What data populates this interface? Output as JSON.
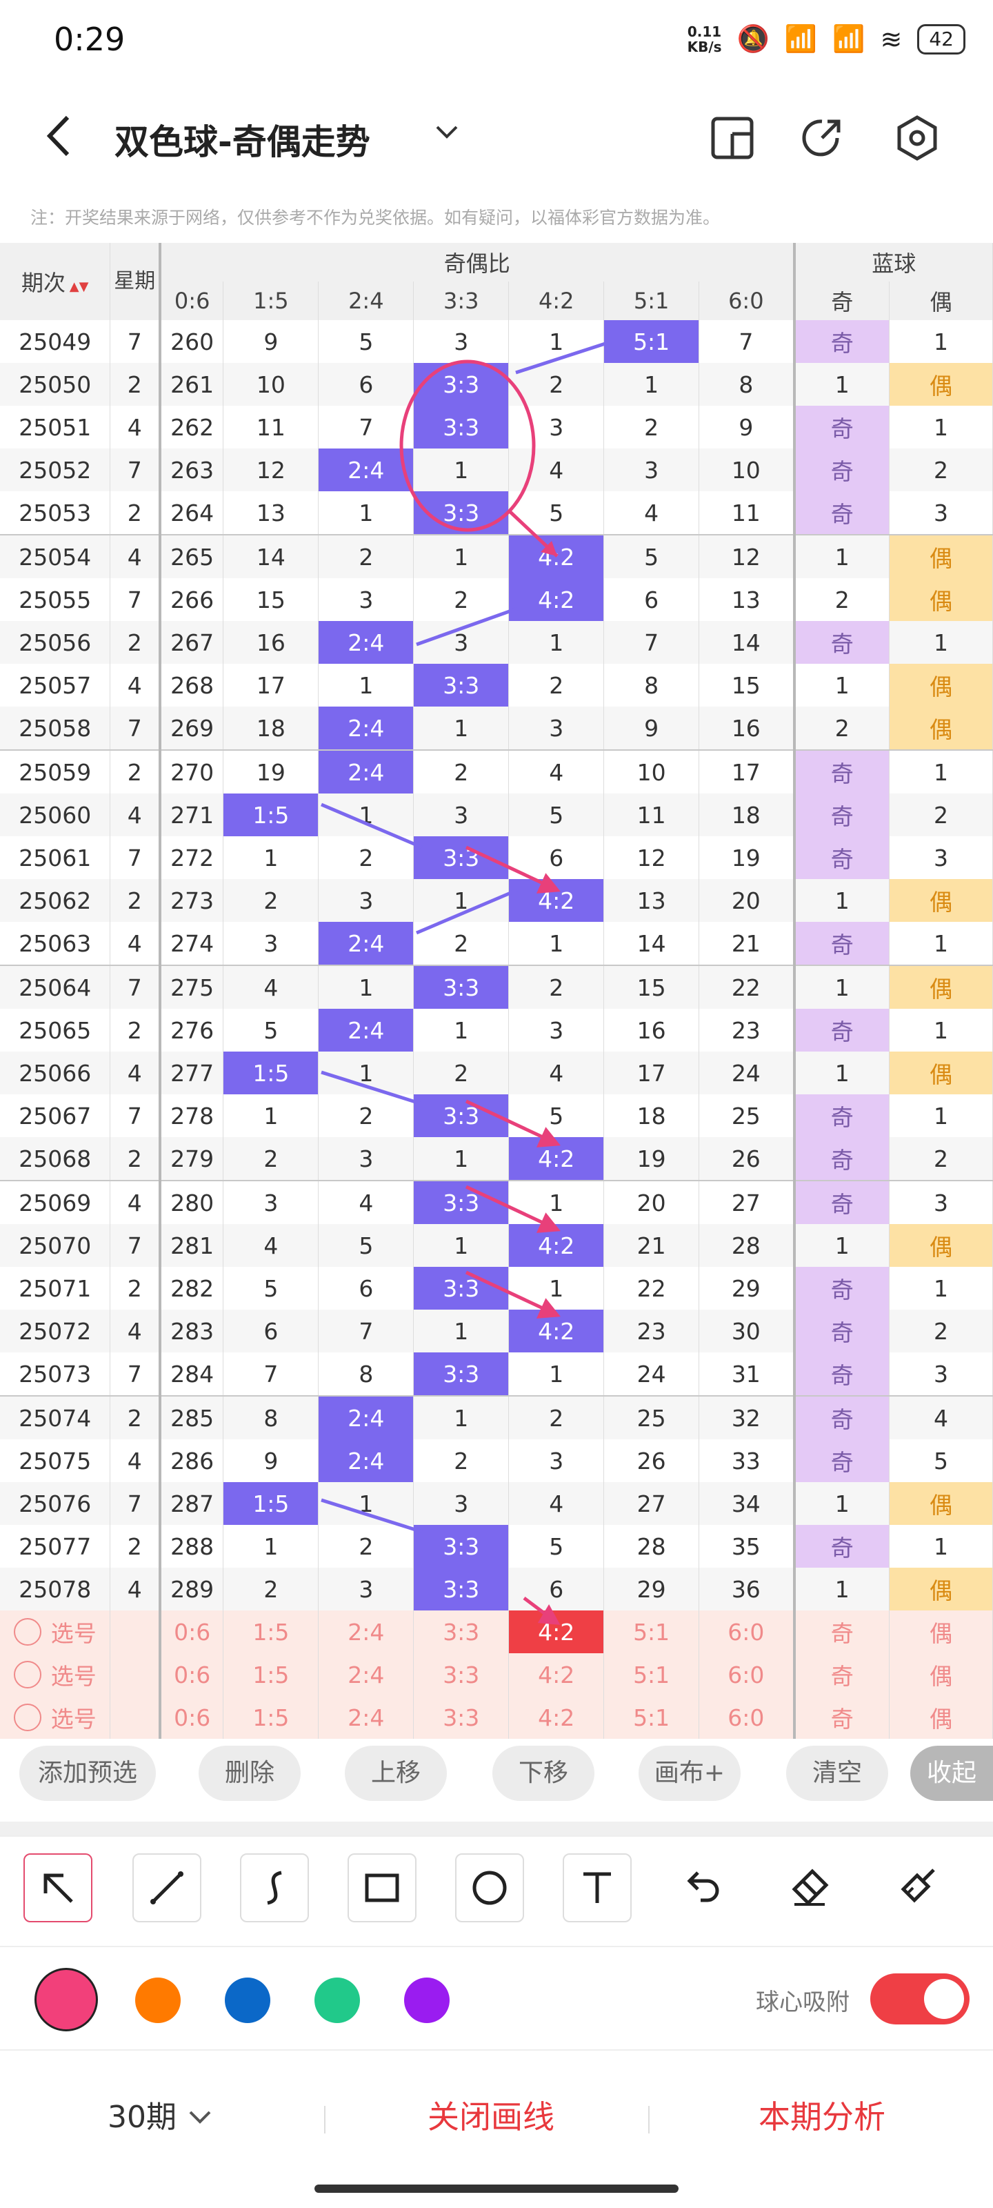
{
  "status": {
    "time": "0:29",
    "speed_value": "0.11",
    "speed_unit": "KB/s",
    "battery": "42"
  },
  "header": {
    "title": "双色球-奇偶走势"
  },
  "notice": "注：开奖结果来源于网络，仅供参考不作为兑奖依据。如有疑问，以福体彩官方数据为准。",
  "table": {
    "h_period": "期次",
    "h_week": "星期",
    "h_oddeven": "奇偶比",
    "h_blue": "蓝球",
    "cols": [
      "0:6",
      "1:5",
      "2:4",
      "3:3",
      "4:2",
      "5:1",
      "6:0"
    ],
    "blue_cols": [
      "奇",
      "偶"
    ],
    "rows": [
      [
        "25049",
        "7",
        "260",
        "9",
        "5",
        "3",
        "1",
        "5:1",
        "7",
        "奇",
        "1"
      ],
      [
        "25050",
        "2",
        "261",
        "10",
        "6",
        "3:3",
        "2",
        "1",
        "8",
        "1",
        "偶"
      ],
      [
        "25051",
        "4",
        "262",
        "11",
        "7",
        "3:3",
        "3",
        "2",
        "9",
        "奇",
        "1"
      ],
      [
        "25052",
        "7",
        "263",
        "12",
        "2:4",
        "1",
        "4",
        "3",
        "10",
        "奇",
        "2"
      ],
      [
        "25053",
        "2",
        "264",
        "13",
        "1",
        "3:3",
        "5",
        "4",
        "11",
        "奇",
        "3"
      ],
      [
        "25054",
        "4",
        "265",
        "14",
        "2",
        "1",
        "4:2",
        "5",
        "12",
        "1",
        "偶"
      ],
      [
        "25055",
        "7",
        "266",
        "15",
        "3",
        "2",
        "4:2",
        "6",
        "13",
        "2",
        "偶"
      ],
      [
        "25056",
        "2",
        "267",
        "16",
        "2:4",
        "3",
        "1",
        "7",
        "14",
        "奇",
        "1"
      ],
      [
        "25057",
        "4",
        "268",
        "17",
        "1",
        "3:3",
        "2",
        "8",
        "15",
        "1",
        "偶"
      ],
      [
        "25058",
        "7",
        "269",
        "18",
        "2:4",
        "1",
        "3",
        "9",
        "16",
        "2",
        "偶"
      ],
      [
        "25059",
        "2",
        "270",
        "19",
        "2:4",
        "2",
        "4",
        "10",
        "17",
        "奇",
        "1"
      ],
      [
        "25060",
        "4",
        "271",
        "1:5",
        "1",
        "3",
        "5",
        "11",
        "18",
        "奇",
        "2"
      ],
      [
        "25061",
        "7",
        "272",
        "1",
        "2",
        "3:3",
        "6",
        "12",
        "19",
        "奇",
        "3"
      ],
      [
        "25062",
        "2",
        "273",
        "2",
        "3",
        "1",
        "4:2",
        "13",
        "20",
        "1",
        "偶"
      ],
      [
        "25063",
        "4",
        "274",
        "3",
        "2:4",
        "2",
        "1",
        "14",
        "21",
        "奇",
        "1"
      ],
      [
        "25064",
        "7",
        "275",
        "4",
        "1",
        "3:3",
        "2",
        "15",
        "22",
        "1",
        "偶"
      ],
      [
        "25065",
        "2",
        "276",
        "5",
        "2:4",
        "1",
        "3",
        "16",
        "23",
        "奇",
        "1"
      ],
      [
        "25066",
        "4",
        "277",
        "1:5",
        "1",
        "2",
        "4",
        "17",
        "24",
        "1",
        "偶"
      ],
      [
        "25067",
        "7",
        "278",
        "1",
        "2",
        "3:3",
        "5",
        "18",
        "25",
        "奇",
        "1"
      ],
      [
        "25068",
        "2",
        "279",
        "2",
        "3",
        "1",
        "4:2",
        "19",
        "26",
        "奇",
        "2"
      ],
      [
        "25069",
        "4",
        "280",
        "3",
        "4",
        "3:3",
        "1",
        "20",
        "27",
        "奇",
        "3"
      ],
      [
        "25070",
        "7",
        "281",
        "4",
        "5",
        "1",
        "4:2",
        "21",
        "28",
        "1",
        "偶"
      ],
      [
        "25071",
        "2",
        "282",
        "5",
        "6",
        "3:3",
        "1",
        "22",
        "29",
        "奇",
        "1"
      ],
      [
        "25072",
        "4",
        "283",
        "6",
        "7",
        "1",
        "4:2",
        "23",
        "30",
        "奇",
        "2"
      ],
      [
        "25073",
        "7",
        "284",
        "7",
        "8",
        "3:3",
        "1",
        "24",
        "31",
        "奇",
        "3"
      ],
      [
        "25074",
        "2",
        "285",
        "8",
        "2:4",
        "1",
        "2",
        "25",
        "32",
        "奇",
        "4"
      ],
      [
        "25075",
        "4",
        "286",
        "9",
        "2:4",
        "2",
        "3",
        "26",
        "33",
        "奇",
        "5"
      ],
      [
        "25076",
        "7",
        "287",
        "1:5",
        "1",
        "3",
        "4",
        "27",
        "34",
        "1",
        "偶"
      ],
      [
        "25077",
        "2",
        "288",
        "1",
        "2",
        "3:3",
        "5",
        "28",
        "35",
        "奇",
        "1"
      ],
      [
        "25078",
        "4",
        "289",
        "2",
        "3",
        "3:3",
        "6",
        "29",
        "36",
        "1",
        "偶"
      ]
    ],
    "pick_label": "选号",
    "pick_cols": [
      "0:6",
      "1:5",
      "2:4",
      "3:3",
      "4:2",
      "5:1",
      "6:0",
      "奇",
      "偶"
    ]
  },
  "actions": {
    "add": "添加预选",
    "delete": "删除",
    "up": "上移",
    "down": "下移",
    "canvas": "画布+",
    "clear": "清空",
    "collapse": "收起"
  },
  "tools": [
    "arrow-tool",
    "line-tool",
    "curve-tool",
    "rect-tool",
    "circle-tool",
    "text-tool",
    "undo-tool",
    "eraser-tool",
    "clean-tool"
  ],
  "colors": {
    "pink": "#f2407a",
    "orange": "#ff7a00",
    "blue": "#0b68c8",
    "green": "#21c98a",
    "purple": "#9a1cf0"
  },
  "snap": {
    "label": "球心吸附",
    "on": true
  },
  "bottom": {
    "period": "30期",
    "close_line": "关闭画线",
    "analysis": "本期分析"
  }
}
